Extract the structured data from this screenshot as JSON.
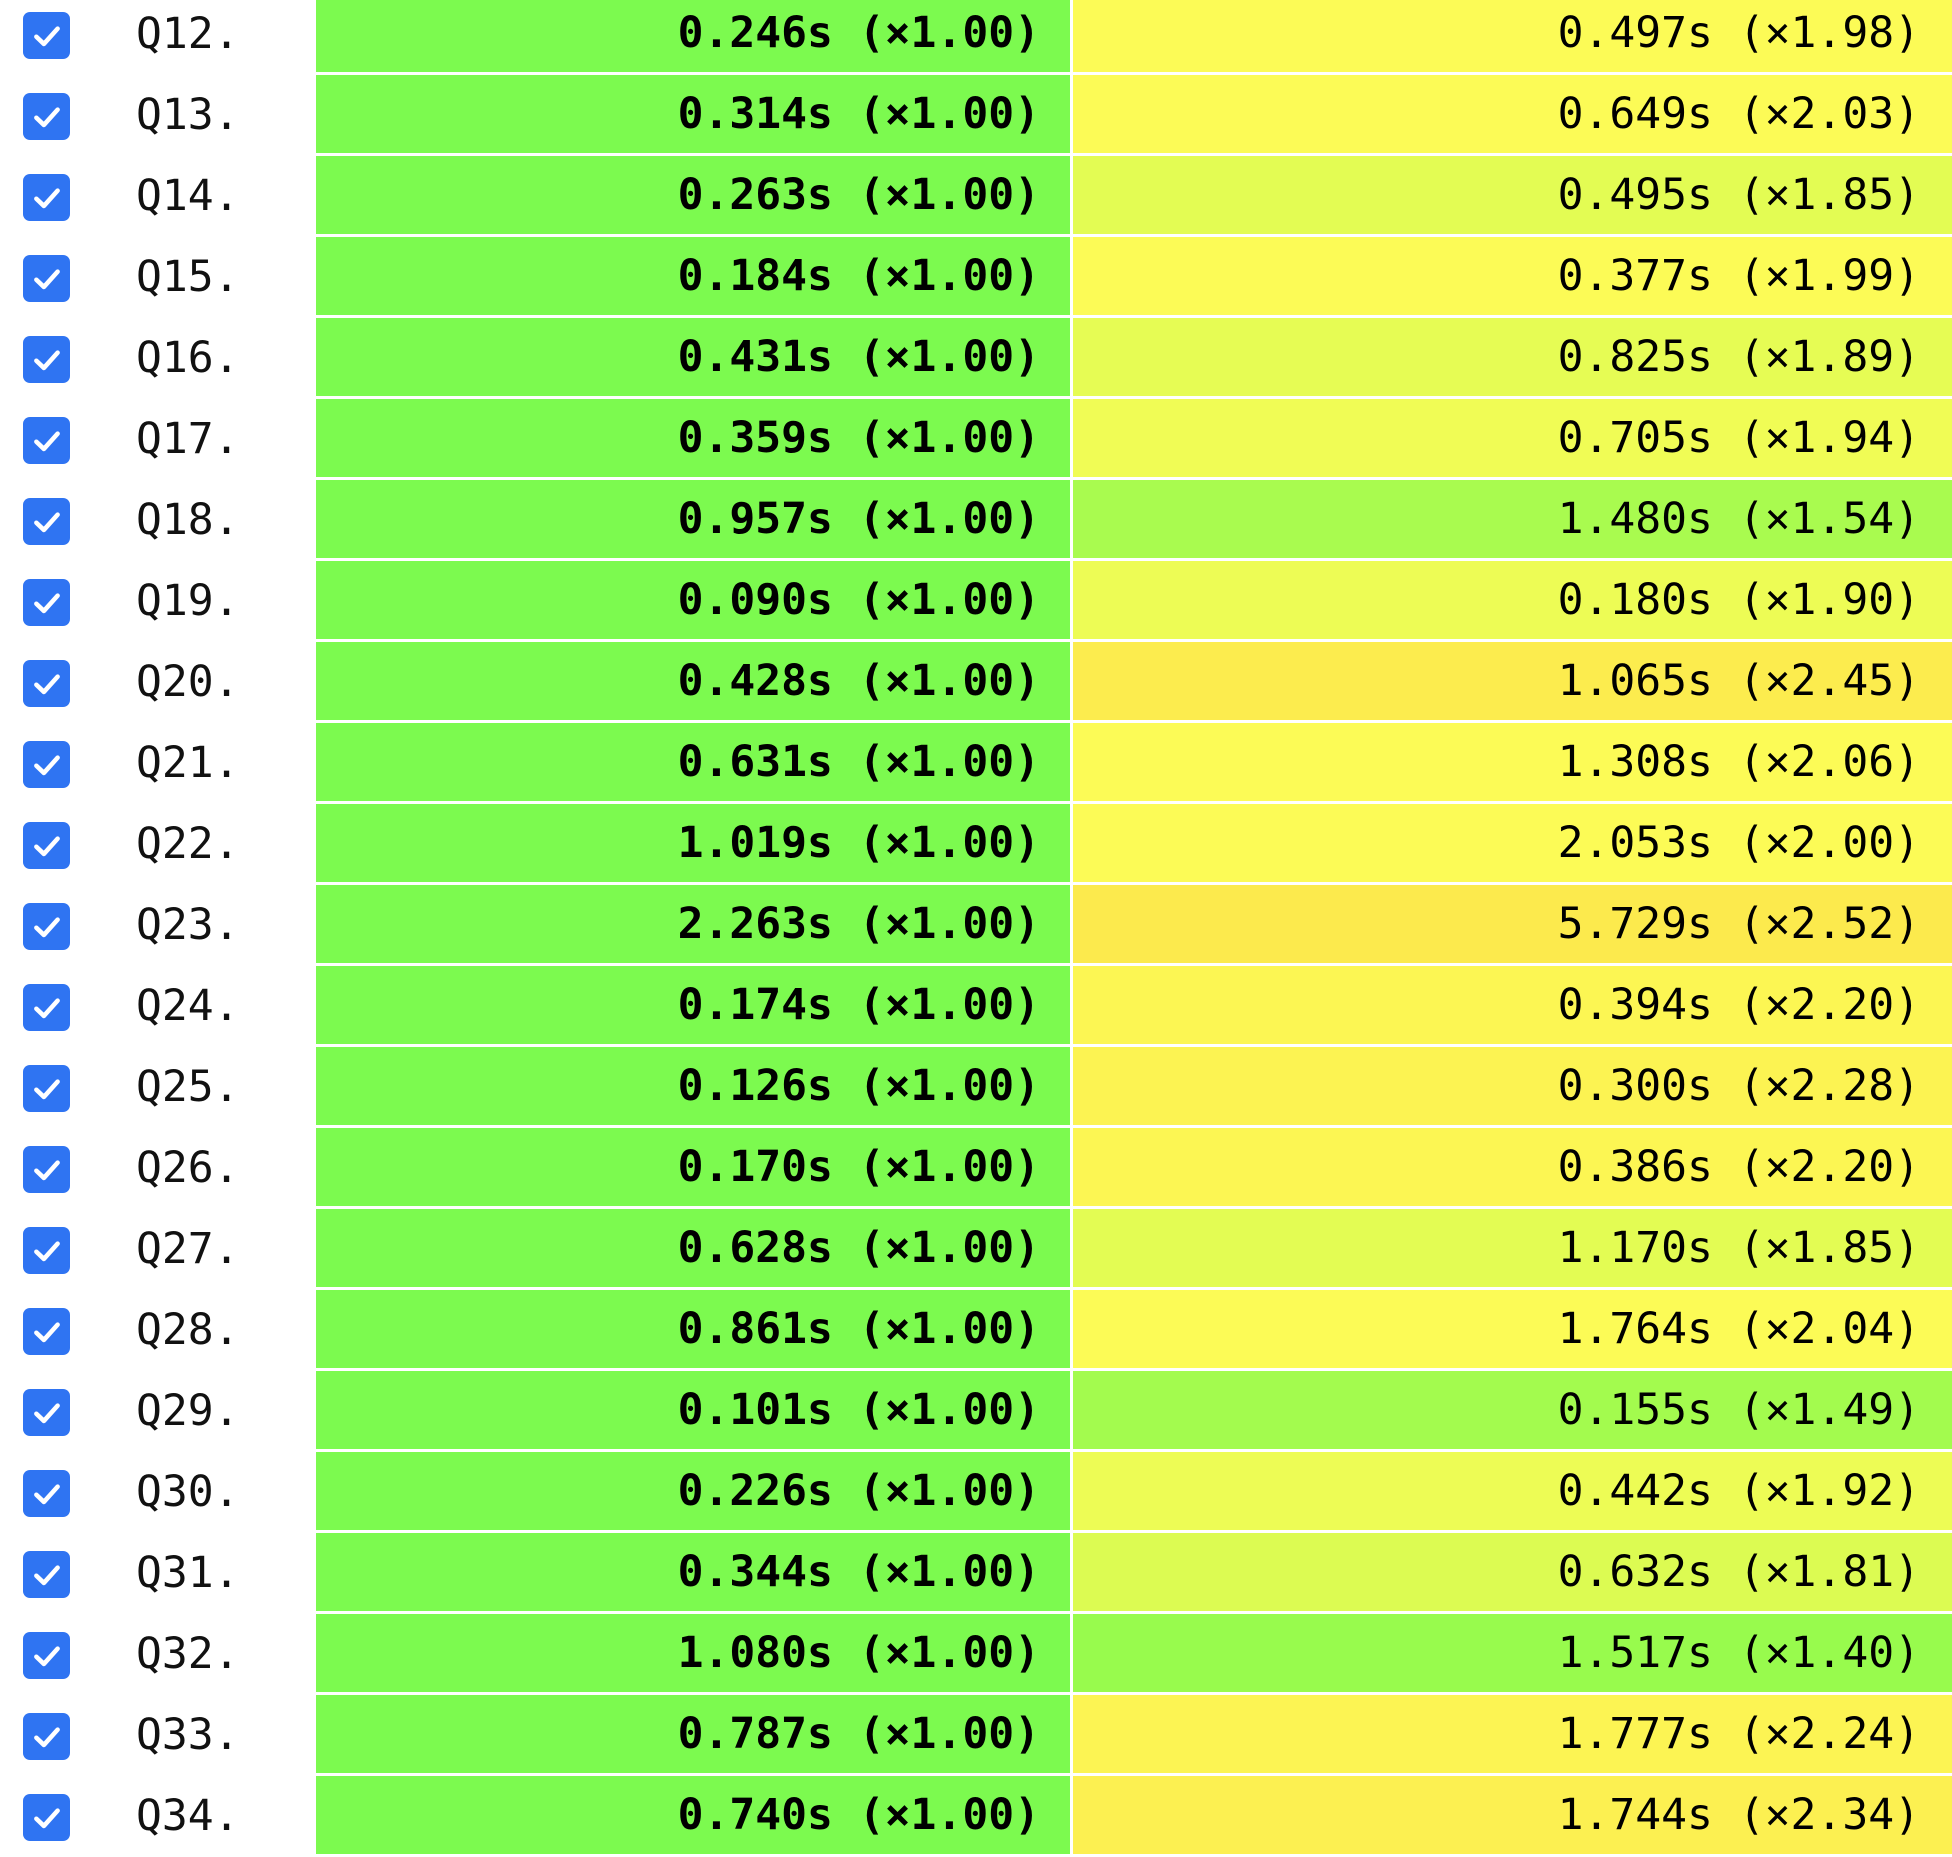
{
  "colors": {
    "checkbox": "#2f74f2",
    "baseline_cell": "#7cfa4f"
  },
  "rows": [
    {
      "query": "Q12.",
      "checked": true,
      "baseline": "0.246s (×1.00)",
      "compare": "0.497s (×1.98)",
      "compare_color": "#fcfb56"
    },
    {
      "query": "Q13.",
      "checked": true,
      "baseline": "0.314s (×1.00)",
      "compare": "0.649s (×2.03)",
      "compare_color": "#fcfb56"
    },
    {
      "query": "Q14.",
      "checked": true,
      "baseline": "0.263s (×1.00)",
      "compare": "0.495s (×1.85)",
      "compare_color": "#e3fc53"
    },
    {
      "query": "Q15.",
      "checked": true,
      "baseline": "0.184s (×1.00)",
      "compare": "0.377s (×1.99)",
      "compare_color": "#fcfb56"
    },
    {
      "query": "Q16.",
      "checked": true,
      "baseline": "0.431s (×1.00)",
      "compare": "0.825s (×1.89)",
      "compare_color": "#e6fc54"
    },
    {
      "query": "Q17.",
      "checked": true,
      "baseline": "0.359s (×1.00)",
      "compare": "0.705s (×1.94)",
      "compare_color": "#f0fc55"
    },
    {
      "query": "Q18.",
      "checked": true,
      "baseline": "0.957s (×1.00)",
      "compare": "1.480s (×1.54)",
      "compare_color": "#a9fb4f"
    },
    {
      "query": "Q19.",
      "checked": true,
      "baseline": "0.090s (×1.00)",
      "compare": "0.180s (×1.90)",
      "compare_color": "#edfc55"
    },
    {
      "query": "Q20.",
      "checked": true,
      "baseline": "0.428s (×1.00)",
      "compare": "1.065s (×2.45)",
      "compare_color": "#fcec4e"
    },
    {
      "query": "Q21.",
      "checked": true,
      "baseline": "0.631s (×1.00)",
      "compare": "1.308s (×2.06)",
      "compare_color": "#fcfb56"
    },
    {
      "query": "Q22.",
      "checked": true,
      "baseline": "1.019s (×1.00)",
      "compare": "2.053s (×2.00)",
      "compare_color": "#fcfb56"
    },
    {
      "query": "Q23.",
      "checked": true,
      "baseline": "2.263s (×1.00)",
      "compare": "5.729s (×2.52)",
      "compare_color": "#fcea4d"
    },
    {
      "query": "Q24.",
      "checked": true,
      "baseline": "0.174s (×1.00)",
      "compare": "0.394s (×2.20)",
      "compare_color": "#fcf653"
    },
    {
      "query": "Q25.",
      "checked": true,
      "baseline": "0.126s (×1.00)",
      "compare": "0.300s (×2.28)",
      "compare_color": "#fcf352"
    },
    {
      "query": "Q26.",
      "checked": true,
      "baseline": "0.170s (×1.00)",
      "compare": "0.386s (×2.20)",
      "compare_color": "#fcf653"
    },
    {
      "query": "Q27.",
      "checked": true,
      "baseline": "0.628s (×1.00)",
      "compare": "1.170s (×1.85)",
      "compare_color": "#e3fc53"
    },
    {
      "query": "Q28.",
      "checked": true,
      "baseline": "0.861s (×1.00)",
      "compare": "1.764s (×2.04)",
      "compare_color": "#fcfb56"
    },
    {
      "query": "Q29.",
      "checked": true,
      "baseline": "0.101s (×1.00)",
      "compare": "0.155s (×1.49)",
      "compare_color": "#a3fb4e"
    },
    {
      "query": "Q30.",
      "checked": true,
      "baseline": "0.226s (×1.00)",
      "compare": "0.442s (×1.92)",
      "compare_color": "#edfc55"
    },
    {
      "query": "Q31.",
      "checked": true,
      "baseline": "0.344s (×1.00)",
      "compare": "0.632s (×1.81)",
      "compare_color": "#dcfb52"
    },
    {
      "query": "Q32.",
      "checked": true,
      "baseline": "1.080s (×1.00)",
      "compare": "1.517s (×1.40)",
      "compare_color": "#98fb4d"
    },
    {
      "query": "Q33.",
      "checked": true,
      "baseline": "0.787s (×1.00)",
      "compare": "1.777s (×2.24)",
      "compare_color": "#fcf453"
    },
    {
      "query": "Q34.",
      "checked": true,
      "baseline": "0.740s (×1.00)",
      "compare": "1.744s (×2.34)",
      "compare_color": "#fcf051"
    }
  ]
}
